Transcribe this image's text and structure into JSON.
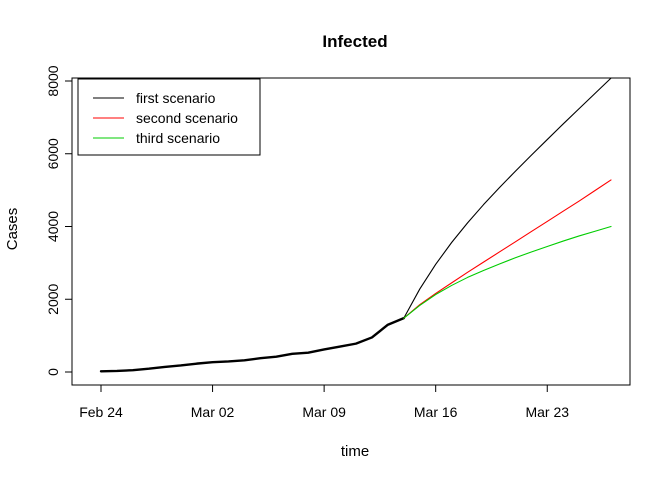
{
  "chart_data": {
    "type": "line",
    "title": "Infected",
    "xlabel": "time",
    "ylabel": "Cases",
    "x_ticks": [
      {
        "label": "Feb 24",
        "day": 0
      },
      {
        "label": "Mar 02",
        "day": 7
      },
      {
        "label": "Mar 09",
        "day": 14
      },
      {
        "label": "Mar 16",
        "day": 21
      },
      {
        "label": "Mar 23",
        "day": 28
      }
    ],
    "y_ticks": [
      0,
      2000,
      4000,
      6000,
      8000
    ],
    "xlim_days": [
      0,
      32
    ],
    "ylim": [
      0,
      8000
    ],
    "grid": false,
    "legend_position": "top-left",
    "observed": {
      "color": "#000000",
      "days": [
        0,
        1,
        2,
        3,
        4,
        5,
        6,
        7,
        8,
        9,
        10,
        11,
        12,
        13,
        14,
        15,
        16,
        17,
        18,
        19
      ],
      "values": [
        20,
        30,
        50,
        90,
        140,
        180,
        230,
        270,
        290,
        320,
        380,
        420,
        500,
        530,
        620,
        700,
        780,
        950,
        1300,
        1480
      ]
    },
    "projection_days": [
      19,
      20,
      21,
      22,
      23,
      24,
      25,
      26,
      27,
      28,
      29,
      30,
      31,
      32
    ],
    "series": [
      {
        "name": "first scenario",
        "color": "#000000",
        "values": [
          1480,
          2280,
          2960,
          3560,
          4100,
          4600,
          5070,
          5520,
          5960,
          6390,
          6820,
          7240,
          7660,
          8080
        ]
      },
      {
        "name": "second scenario",
        "color": "#ff0000",
        "values": [
          1480,
          1850,
          2160,
          2450,
          2740,
          3020,
          3300,
          3580,
          3860,
          4140,
          4420,
          4700,
          4990,
          5280
        ]
      },
      {
        "name": "third scenario",
        "color": "#00cd00",
        "values": [
          1480,
          1830,
          2130,
          2380,
          2600,
          2790,
          2970,
          3140,
          3300,
          3450,
          3600,
          3740,
          3870,
          4000
        ]
      }
    ]
  }
}
